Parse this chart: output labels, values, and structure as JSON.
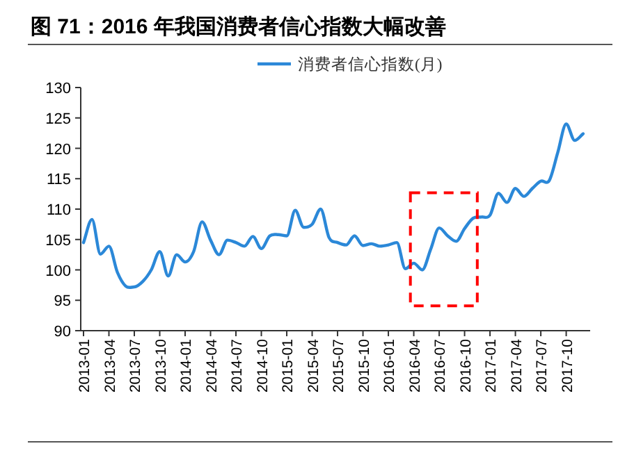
{
  "chart_data": {
    "type": "line",
    "title": "图 71：2016 年我国消费者信心指数大幅改善",
    "categories": [
      "2013-01",
      null,
      null,
      "2013-04",
      null,
      null,
      "2013-07",
      null,
      null,
      "2013-10",
      null,
      null,
      "2014-01",
      null,
      null,
      "2014-04",
      null,
      null,
      "2014-07",
      null,
      null,
      "2014-10",
      null,
      null,
      "2015-01",
      null,
      null,
      "2015-04",
      null,
      null,
      "2015-07",
      null,
      null,
      "2015-10",
      null,
      null,
      "2016-01",
      null,
      null,
      "2016-04",
      null,
      null,
      "2016-07",
      null,
      null,
      "2016-10",
      null,
      null,
      "2017-01",
      null,
      null,
      "2017-04",
      null,
      null,
      "2017-07",
      null,
      null,
      "2017-10",
      null,
      null
    ],
    "series": [
      {
        "name": "消费者信心指数(月)",
        "color": "#2b88d8",
        "values": [
          104.5,
          108.3,
          102.6,
          103.9,
          99.6,
          97.3,
          97.2,
          98.1,
          100,
          103,
          99,
          102.5,
          101.3,
          103,
          107.9,
          104.9,
          102.5,
          104.9,
          104.5,
          103.9,
          105.5,
          103.5,
          105.6,
          105.8,
          105.6,
          109.8,
          107,
          107.5,
          110,
          105.3,
          104.5,
          104.1,
          105.6,
          104,
          104.3,
          103.9,
          104.1,
          104.5,
          100.2,
          101.1,
          100,
          103.4,
          106.9,
          105.6,
          104.7,
          106.8,
          108.5,
          108.7,
          109,
          112.6,
          111.1,
          113.4,
          112.1,
          113.4,
          114.6,
          114.7,
          119.3,
          124,
          121.3,
          122.4
        ]
      }
    ],
    "ylim": [
      90,
      130
    ],
    "yticks": [
      90,
      95,
      100,
      105,
      110,
      115,
      120,
      125,
      130
    ],
    "legend": "top",
    "marker": "none",
    "line_style": "solid"
  }
}
